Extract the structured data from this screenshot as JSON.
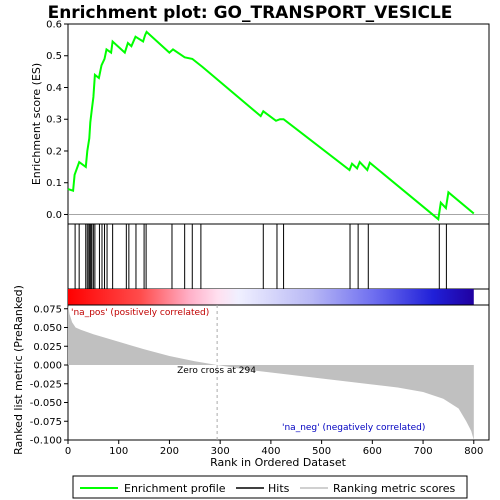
{
  "chart_data": {
    "type": "line",
    "title": "Enrichment plot: GO_TRANSPORT_VESICLE",
    "es_panel": {
      "ylabel": "Enrichment score (ES)",
      "ylim": [
        -0.03,
        0.6
      ],
      "yticks": [
        "0.0",
        "0.1",
        "0.2",
        "0.3",
        "0.4",
        "0.5",
        "0.6"
      ],
      "ytick_values": [
        0.0,
        0.1,
        0.2,
        0.3,
        0.4,
        0.5,
        0.6
      ],
      "series": [
        {
          "name": "Enrichment profile",
          "color": "#00ff00",
          "x": [
            0,
            10,
            13,
            22,
            35,
            38,
            42,
            44,
            47,
            50,
            53,
            61,
            66,
            72,
            76,
            85,
            88,
            112,
            118,
            125,
            133,
            148,
            152,
            155,
            200,
            207,
            230,
            245,
            265,
            380,
            385,
            410,
            418,
            425,
            555,
            560,
            570,
            575,
            590,
            595,
            730,
            735,
            745,
            750,
            800
          ],
          "y": [
            0.08,
            0.075,
            0.125,
            0.165,
            0.15,
            0.2,
            0.24,
            0.29,
            0.33,
            0.37,
            0.44,
            0.43,
            0.47,
            0.49,
            0.52,
            0.51,
            0.545,
            0.51,
            0.54,
            0.53,
            0.56,
            0.545,
            0.565,
            0.575,
            0.51,
            0.52,
            0.495,
            0.49,
            0.465,
            0.31,
            0.325,
            0.295,
            0.3,
            0.3,
            0.14,
            0.16,
            0.145,
            0.165,
            0.14,
            0.163,
            -0.015,
            0.037,
            0.02,
            0.07,
            0.003
          ]
        }
      ]
    },
    "hits_panel": {
      "hit_ranks": [
        0,
        14,
        22,
        35,
        38,
        41,
        43,
        45,
        47,
        50,
        53,
        62,
        67,
        72,
        77,
        88,
        115,
        120,
        134,
        150,
        154,
        205,
        230,
        245,
        262,
        385,
        412,
        425,
        556,
        572,
        592,
        732,
        746
      ]
    },
    "heatmap_bar": {
      "positive_color": "#ff0000",
      "negative_color": "#0000ff"
    },
    "rank_panel": {
      "ylabel": "Ranked list metric (PreRanked)",
      "xlabel": "Rank in Ordered Dataset",
      "ylim": [
        -0.1,
        0.08
      ],
      "yticks": [
        "0.075",
        "0.050",
        "0.025",
        "0.000",
        "-0.025",
        "-0.050",
        "-0.075",
        "-0.100"
      ],
      "ytick_values": [
        0.075,
        0.05,
        0.025,
        0.0,
        -0.025,
        -0.05,
        -0.075,
        -0.1
      ],
      "xticks": [
        "0",
        "100",
        "200",
        "300",
        "400",
        "500",
        "600",
        "700",
        "800"
      ],
      "xtick_values": [
        0,
        100,
        200,
        300,
        400,
        500,
        600,
        700,
        800
      ],
      "xlim": [
        0,
        830
      ],
      "n": 800,
      "zero_cross": 294,
      "zero_cross_label": "Zero cross at 294",
      "pos_label": "'na_pos' (positively correlated)",
      "neg_label": "'na_neg' (negatively correlated)",
      "fill_color": "#c0c0c0",
      "profile_x": [
        0,
        3,
        8,
        15,
        25,
        50,
        100,
        150,
        200,
        250,
        294,
        350,
        400,
        450,
        500,
        550,
        600,
        650,
        700,
        740,
        770,
        785,
        795,
        800
      ],
      "profile_y": [
        0.08,
        0.068,
        0.057,
        0.05,
        0.047,
        0.041,
        0.031,
        0.021,
        0.012,
        0.005,
        0.0,
        -0.006,
        -0.01,
        -0.014,
        -0.018,
        -0.022,
        -0.026,
        -0.03,
        -0.036,
        -0.045,
        -0.058,
        -0.075,
        -0.088,
        -0.1
      ]
    },
    "legend": {
      "placement": "bottom",
      "entries": [
        {
          "label": "Enrichment profile",
          "color": "#00ff00"
        },
        {
          "label": "Hits",
          "color": "#000000"
        },
        {
          "label": "Ranking metric scores",
          "color": "#c0c0c0"
        }
      ]
    }
  }
}
